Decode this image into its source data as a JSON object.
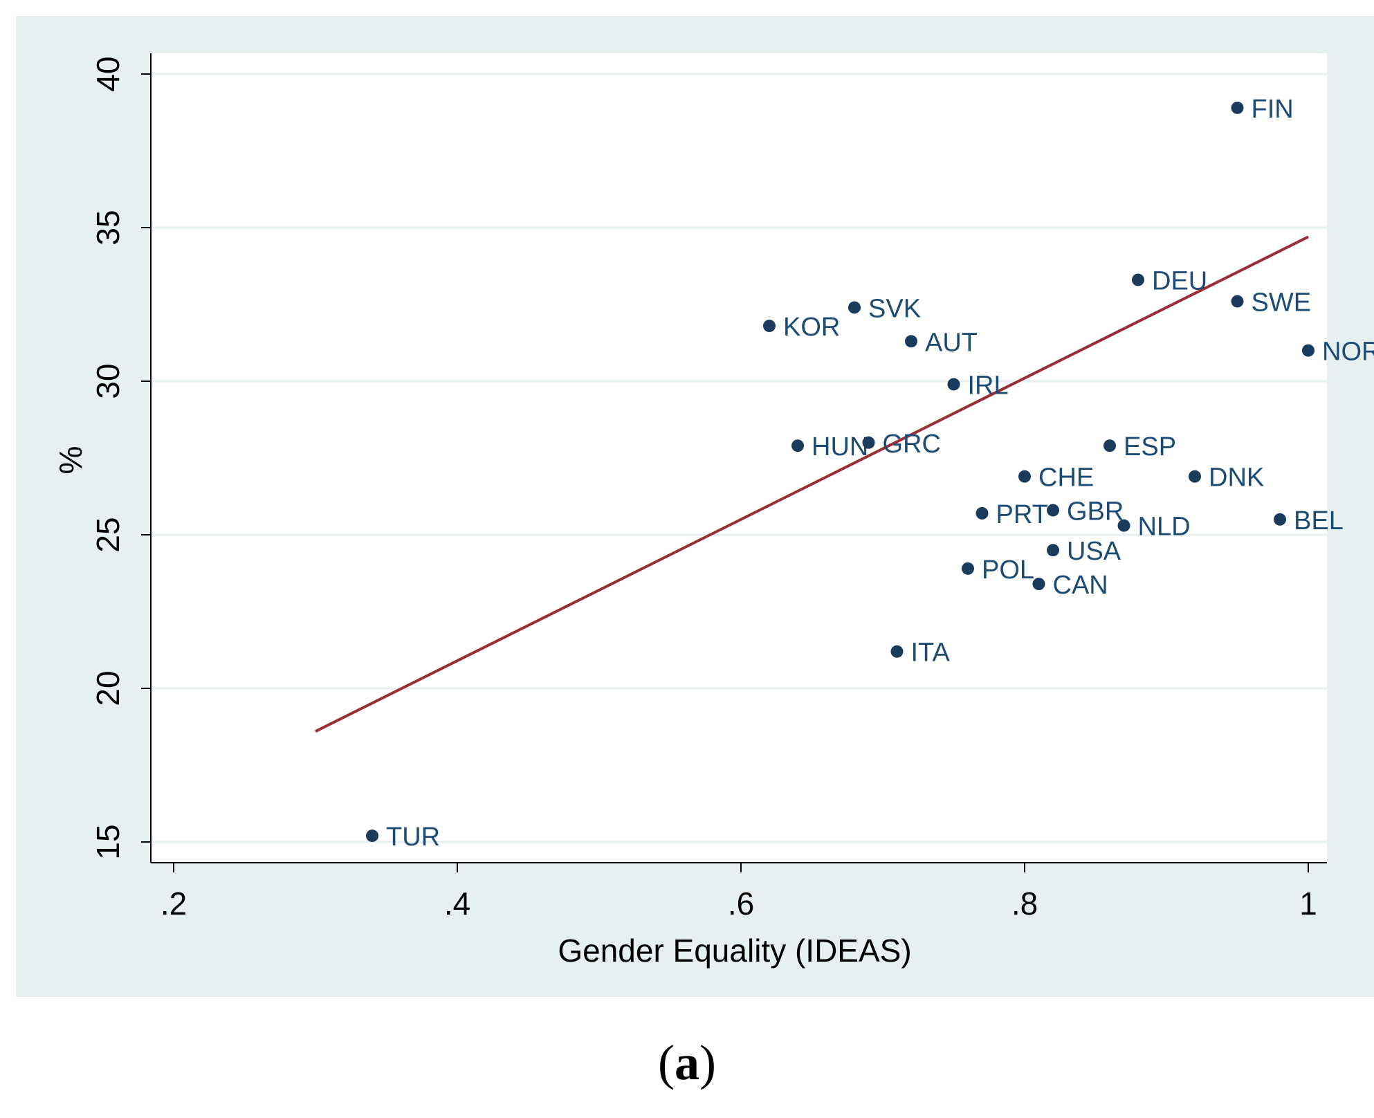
{
  "colors": {
    "outer_background": "#e6f0f0",
    "plot_background": "#ffffff",
    "gridline": "#e8eff0",
    "marker": "#1a3b5c",
    "label": "#1d4b73",
    "fit_line": "#9b2d35",
    "axis": "#000000"
  },
  "caption": {
    "open": "(",
    "letter": "a",
    "close": ")"
  },
  "chart_data": {
    "type": "scatter",
    "title": "",
    "xlabel": "Gender Equality (IDEAS)",
    "ylabel": "%",
    "xlim": [
      0.18,
      1.01
    ],
    "ylim": [
      14.3,
      40.7
    ],
    "x_ticks": [
      0.2,
      0.4,
      0.6,
      0.8,
      1.0
    ],
    "x_tick_labels": [
      ".2",
      ".4",
      ".6",
      ".8",
      "1"
    ],
    "y_ticks": [
      15,
      20,
      25,
      30,
      35,
      40
    ],
    "y_tick_labels": [
      "15",
      "20",
      "25",
      "30",
      "35",
      "40"
    ],
    "grid": "horizontal",
    "points": [
      {
        "label": "FIN",
        "x": 0.95,
        "y": 38.9
      },
      {
        "label": "DEU",
        "x": 0.88,
        "y": 33.3
      },
      {
        "label": "SWE",
        "x": 0.95,
        "y": 32.6
      },
      {
        "label": "SVK",
        "x": 0.68,
        "y": 32.4
      },
      {
        "label": "KOR",
        "x": 0.62,
        "y": 31.8
      },
      {
        "label": "AUT",
        "x": 0.72,
        "y": 31.3
      },
      {
        "label": "NOR",
        "x": 1.0,
        "y": 31.0
      },
      {
        "label": "IRL",
        "x": 0.75,
        "y": 29.9
      },
      {
        "label": "HUN",
        "x": 0.64,
        "y": 27.9
      },
      {
        "label": "GRC",
        "x": 0.69,
        "y": 28.0
      },
      {
        "label": "ESP",
        "x": 0.86,
        "y": 27.9
      },
      {
        "label": "CHE",
        "x": 0.8,
        "y": 26.9
      },
      {
        "label": "DNK",
        "x": 0.92,
        "y": 26.9
      },
      {
        "label": "PRT",
        "x": 0.77,
        "y": 25.7
      },
      {
        "label": "GBR",
        "x": 0.82,
        "y": 25.8
      },
      {
        "label": "NLD",
        "x": 0.87,
        "y": 25.3
      },
      {
        "label": "BEL",
        "x": 0.98,
        "y": 25.5
      },
      {
        "label": "USA",
        "x": 0.82,
        "y": 24.5
      },
      {
        "label": "POL",
        "x": 0.76,
        "y": 23.9
      },
      {
        "label": "CAN",
        "x": 0.81,
        "y": 23.4
      },
      {
        "label": "ITA",
        "x": 0.71,
        "y": 21.2
      },
      {
        "label": "TUR",
        "x": 0.34,
        "y": 15.2
      }
    ],
    "fit_line": {
      "x": [
        0.3,
        1.0
      ],
      "y": [
        18.6,
        34.7
      ]
    }
  }
}
